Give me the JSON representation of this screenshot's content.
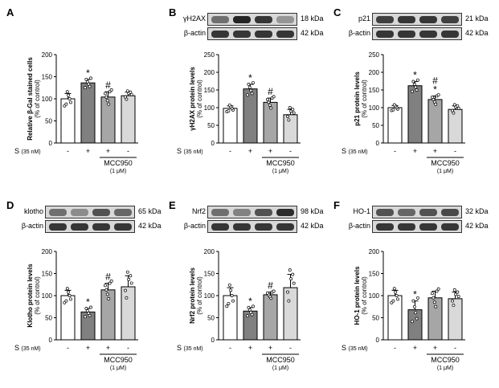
{
  "chart_data": [
    {
      "panel": "A",
      "type": "bar",
      "ylabel": "Relative β-Gal stained cells (% of control)",
      "ylim": [
        0,
        200
      ],
      "yticks": [
        0,
        50,
        100,
        150,
        200
      ],
      "categories": [
        "-",
        "+",
        "+",
        "-"
      ],
      "values": [
        100,
        136,
        104,
        107
      ],
      "errors": [
        12,
        8,
        12,
        8
      ],
      "annotations": [
        "",
        "*",
        "#",
        ""
      ],
      "blots": []
    },
    {
      "panel": "B",
      "type": "bar",
      "ylabel": "γH2AX protein levels (% of control)",
      "ylim": [
        0,
        250
      ],
      "yticks": [
        0,
        50,
        100,
        150,
        200,
        250
      ],
      "categories": [
        "-",
        "+",
        "+",
        "-"
      ],
      "values": [
        98,
        153,
        115,
        80
      ],
      "errors": [
        7,
        13,
        12,
        15
      ],
      "annotations": [
        "",
        "*",
        "#",
        ""
      ],
      "blots": [
        {
          "name": "γH2AX",
          "kda": "18 kDa",
          "intensity": [
            0.55,
            0.95,
            0.85,
            0.35
          ]
        },
        {
          "name": "β-actin",
          "kda": "42 kDa",
          "intensity": [
            0.85,
            0.85,
            0.85,
            0.85
          ]
        }
      ]
    },
    {
      "panel": "C",
      "type": "bar",
      "ylabel": "p21 protein levels (% of control)",
      "ylim": [
        0,
        250
      ],
      "yticks": [
        0,
        50,
        100,
        150,
        200,
        250
      ],
      "categories": [
        "-",
        "+",
        "+",
        "-"
      ],
      "values": [
        100,
        162,
        123,
        95
      ],
      "errors": [
        6,
        12,
        10,
        10
      ],
      "annotations": [
        "",
        "*",
        "#\n*",
        ""
      ],
      "blots": [
        {
          "name": "p21",
          "kda": "21 kDa",
          "intensity": [
            0.8,
            0.85,
            0.85,
            0.8
          ]
        },
        {
          "name": "β-actin",
          "kda": "42 kDa",
          "intensity": [
            0.85,
            0.85,
            0.85,
            0.85
          ]
        }
      ]
    },
    {
      "panel": "D",
      "type": "bar",
      "ylabel": "Klotho protein levels (% of control)",
      "ylim": [
        0,
        200
      ],
      "yticks": [
        0,
        50,
        100,
        150,
        200
      ],
      "categories": [
        "-",
        "+",
        "+",
        "-"
      ],
      "values": [
        100,
        63,
        113,
        120
      ],
      "errors": [
        12,
        8,
        15,
        25
      ],
      "annotations": [
        "",
        "*",
        "#",
        ""
      ],
      "blots": [
        {
          "name": "klotho",
          "kda": "65 kDa",
          "intensity": [
            0.55,
            0.4,
            0.7,
            0.6
          ]
        },
        {
          "name": "β-actin",
          "kda": "42 kDa",
          "intensity": [
            0.85,
            0.85,
            0.85,
            0.85
          ]
        }
      ]
    },
    {
      "panel": "E",
      "type": "bar",
      "ylabel": "Nrf2 protein levels (% of control)",
      "ylim": [
        0,
        200
      ],
      "yticks": [
        0,
        50,
        100,
        150,
        200
      ],
      "categories": [
        "-",
        "+",
        "+",
        "-"
      ],
      "values": [
        100,
        65,
        102,
        118
      ],
      "errors": [
        18,
        8,
        6,
        30
      ],
      "annotations": [
        "",
        "*",
        "#",
        ""
      ],
      "blots": [
        {
          "name": "Nrf2",
          "kda": "98 kDa",
          "intensity": [
            0.55,
            0.45,
            0.7,
            0.9
          ]
        },
        {
          "name": "β-actin",
          "kda": "42 kDa",
          "intensity": [
            0.85,
            0.85,
            0.85,
            0.85
          ]
        }
      ]
    },
    {
      "panel": "F",
      "type": "bar",
      "ylabel": "HO-1 protein levels (% of control)",
      "ylim": [
        0,
        200
      ],
      "yticks": [
        0,
        50,
        100,
        150,
        200
      ],
      "categories": [
        "-",
        "+",
        "+",
        "-"
      ],
      "values": [
        100,
        68,
        95,
        93
      ],
      "errors": [
        12,
        20,
        15,
        15
      ],
      "annotations": [
        "",
        "*",
        "",
        ""
      ],
      "blots": [
        {
          "name": "HO-1",
          "kda": "32 kDa",
          "intensity": [
            0.7,
            0.6,
            0.7,
            0.75
          ]
        },
        {
          "name": "β-actin",
          "kda": "42 kDa",
          "intensity": [
            0.85,
            0.85,
            0.85,
            0.85
          ]
        }
      ]
    }
  ],
  "treatment_label": "S",
  "treatment_dose": "(35 nM)",
  "inhibitor_label": "MCC950",
  "inhibitor_dose": "(1 μM)",
  "colors": {
    "bars": [
      "#ffffff",
      "#808080",
      "#a6a6a6",
      "#d9d9d9"
    ],
    "axis": "#000000",
    "band": "#1a1a1a",
    "blot_bg": "#d8d8d8"
  }
}
